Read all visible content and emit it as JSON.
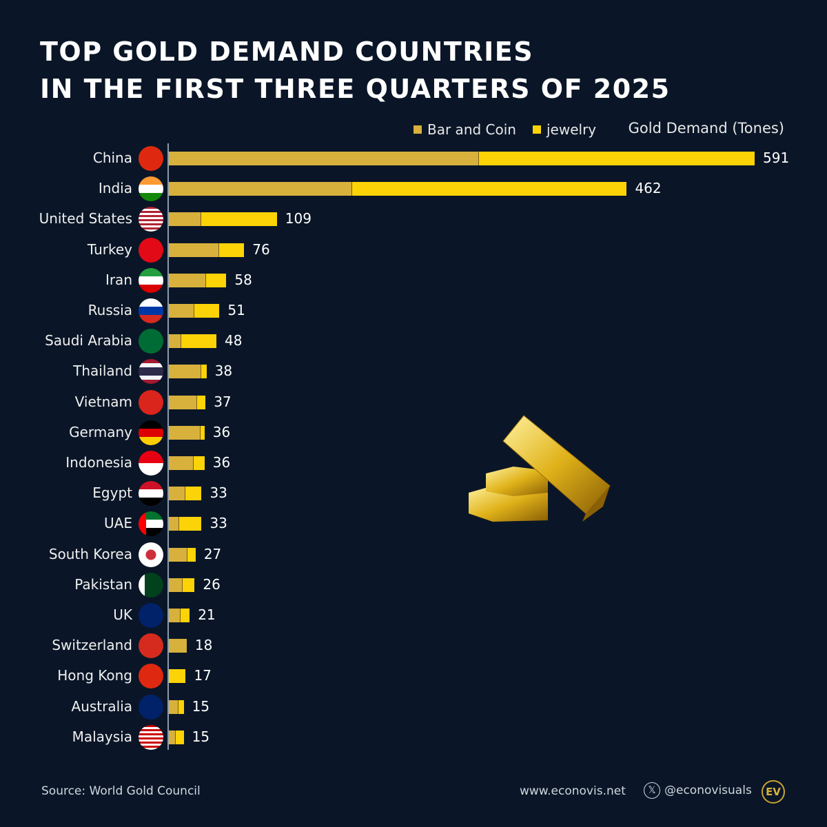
{
  "title_line1": "TOP GOLD DEMAND COUNTRIES",
  "title_line2": "IN THE FIRST THREE QUARTERS OF 2025",
  "source": "Source: World Gold Council",
  "website": "www.econovis.net",
  "handle": "@econovisuals",
  "logo_text": "EV",
  "colors": {
    "background": "#0a1627",
    "bar_and_coin": "#d8b13c",
    "jewelry": "#fcd307"
  },
  "chart_data": {
    "type": "bar",
    "orientation": "horizontal",
    "stacked": true,
    "unit_label": "Gold Demand (Tones)",
    "legend_position": "top-right",
    "grid": false,
    "categories": [
      "China",
      "India",
      "United States",
      "Turkey",
      "Iran",
      "Russia",
      "Saudi Arabia",
      "Thailand",
      "Vietnam",
      "Germany",
      "Indonesia",
      "Egypt",
      "UAE",
      "South Korea",
      "Pakistan",
      "UK",
      "Switzerland",
      "Hong Kong",
      "Australia",
      "Malaysia"
    ],
    "totals": [
      591,
      462,
      109,
      76,
      58,
      51,
      48,
      38,
      37,
      36,
      36,
      33,
      33,
      27,
      26,
      21,
      18,
      17,
      15,
      15
    ],
    "series": [
      {
        "name": "Bar and Coin",
        "values": [
          312,
          184,
          32,
          50,
          37,
          25,
          12,
          32,
          28,
          31,
          24,
          16,
          10,
          18,
          13,
          11,
          18,
          0,
          9,
          6
        ]
      },
      {
        "name": "jewelry",
        "values": [
          279,
          278,
          77,
          26,
          21,
          26,
          36,
          6,
          9,
          5,
          12,
          17,
          23,
          9,
          13,
          10,
          0,
          17,
          6,
          9
        ]
      }
    ],
    "xlim": [
      0,
      591
    ]
  },
  "flags": [
    "china-flag",
    "india-flag",
    "usa-flag",
    "turkey-flag",
    "iran-flag",
    "russia-flag",
    "saudi-flag",
    "thailand-flag",
    "vietnam-flag",
    "germany-flag",
    "indonesia-flag",
    "egypt-flag",
    "uae-flag",
    "south-korea-flag",
    "pakistan-flag",
    "uk-flag",
    "switzerland-flag",
    "hong-kong-flag",
    "australia-flag",
    "malaysia-flag"
  ]
}
